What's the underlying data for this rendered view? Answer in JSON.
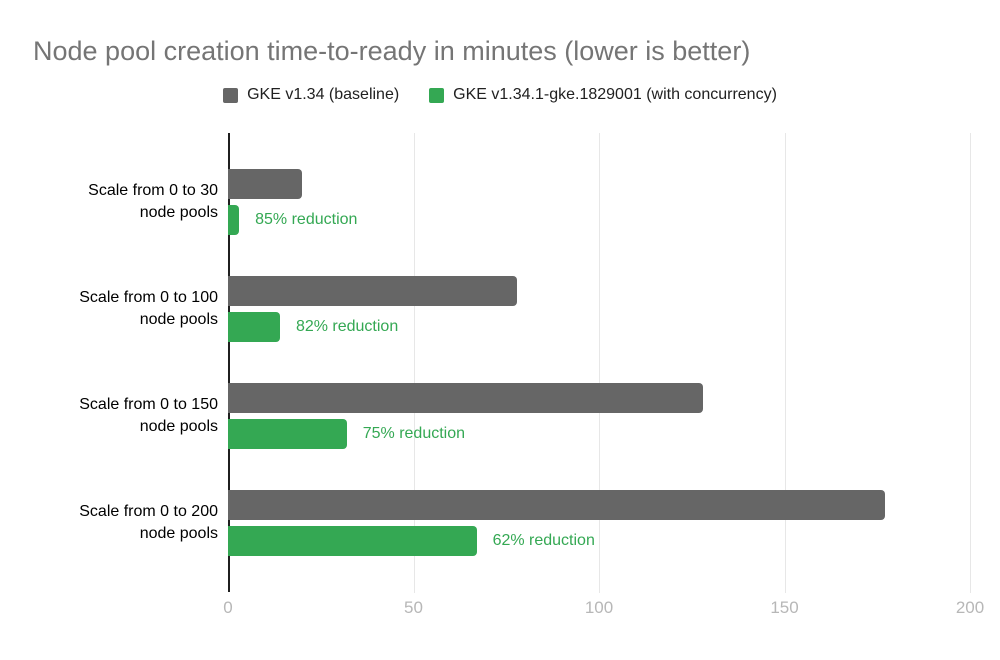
{
  "header": {
    "title": "Node pool creation time-to-ready in minutes (lower is better)"
  },
  "legend": {
    "items": [
      {
        "label": "GKE v1.34 (baseline)",
        "color": "#666666"
      },
      {
        "label": "GKE v1.34.1-gke.1829001 (with concurrency)",
        "color": "#34a853"
      }
    ]
  },
  "chart_data": {
    "type": "bar",
    "orientation": "horizontal",
    "title": "Node pool creation time-to-ready in minutes (lower is better)",
    "categories": [
      "Scale from 0 to 30 node pools",
      "Scale from 0 to 100 node pools",
      "Scale from 0 to 150 node pools",
      "Scale from 0 to 200 node pools"
    ],
    "category_lines": [
      [
        "Scale from 0 to 30",
        "node pools"
      ],
      [
        "Scale from 0 to 100",
        "node pools"
      ],
      [
        "Scale from 0 to 150",
        "node pools"
      ],
      [
        "Scale from 0 to 200",
        "node pools"
      ]
    ],
    "series": [
      {
        "name": "GKE v1.34 (baseline)",
        "color": "#666666",
        "values": [
          20,
          78,
          128,
          177
        ]
      },
      {
        "name": "GKE v1.34.1-gke.1829001 (with concurrency)",
        "color": "#34a853",
        "values": [
          3,
          14,
          32,
          67
        ]
      }
    ],
    "annotations": [
      "85% reduction",
      "82% reduction",
      "75% reduction",
      "62% reduction"
    ],
    "annotation_color": "#34a853",
    "xlabel": "",
    "ylabel": "",
    "xlim": [
      0,
      200
    ],
    "xticks": [
      0,
      50,
      100,
      150,
      200
    ],
    "grid": true,
    "legend_position": "top",
    "units": "minutes"
  },
  "colors": {
    "title": "#757575",
    "baseline_series": "#666666",
    "concurrency_series": "#34a853",
    "tick_label": "#b7b7b7",
    "gridline": "#e7e7e7",
    "axis": "#1f1f1f",
    "category_label": "#000000",
    "background": "#ffffff"
  }
}
